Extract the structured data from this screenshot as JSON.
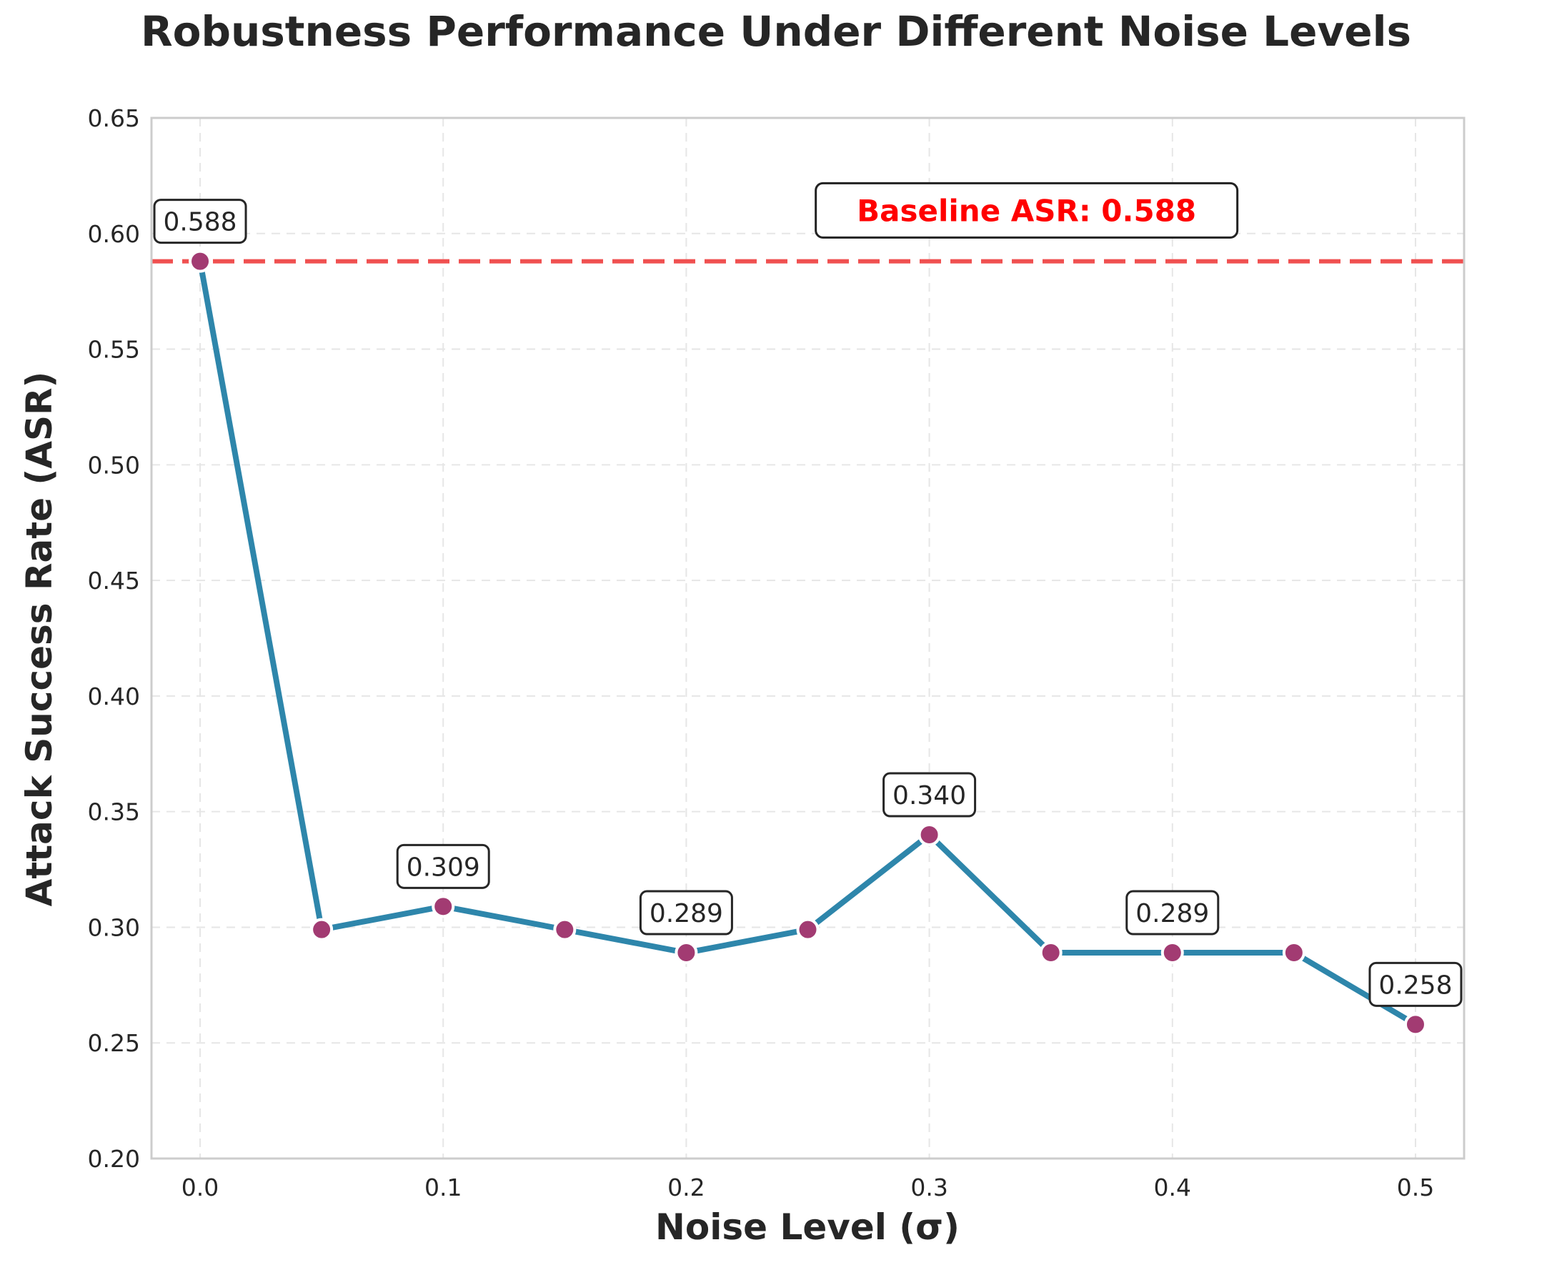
{
  "chart_data": {
    "type": "line",
    "title": "Robustness Performance Under Different Noise Levels",
    "xlabel": "Noise Level (σ)",
    "ylabel": "Attack Success Rate (ASR)",
    "xlim": [
      -0.02,
      0.52
    ],
    "ylim": [
      0.2,
      0.65
    ],
    "xticks": [
      0.0,
      0.1,
      0.2,
      0.3,
      0.4,
      0.5
    ],
    "xtick_labels": [
      "0.0",
      "0.1",
      "0.2",
      "0.3",
      "0.4",
      "0.5"
    ],
    "yticks": [
      0.2,
      0.25,
      0.3,
      0.35,
      0.4,
      0.45,
      0.5,
      0.55,
      0.6,
      0.65
    ],
    "ytick_labels": [
      "0.20",
      "0.25",
      "0.30",
      "0.35",
      "0.40",
      "0.45",
      "0.50",
      "0.55",
      "0.60",
      "0.65"
    ],
    "grid": true,
    "series": [
      {
        "x": [
          0.0,
          0.05,
          0.1,
          0.15,
          0.2,
          0.25,
          0.3,
          0.35,
          0.4,
          0.45,
          0.5
        ],
        "y": [
          0.588,
          0.299,
          0.309,
          0.299,
          0.289,
          0.299,
          0.34,
          0.289,
          0.289,
          0.289,
          0.258
        ],
        "line_color": "#2e86ab",
        "marker_color": "#a23b72"
      }
    ],
    "data_labels": [
      {
        "x": 0.0,
        "y": 0.588,
        "text": "0.588"
      },
      {
        "x": 0.1,
        "y": 0.309,
        "text": "0.309"
      },
      {
        "x": 0.2,
        "y": 0.289,
        "text": "0.289"
      },
      {
        "x": 0.3,
        "y": 0.34,
        "text": "0.340"
      },
      {
        "x": 0.4,
        "y": 0.289,
        "text": "0.289"
      },
      {
        "x": 0.5,
        "y": 0.258,
        "text": "0.258"
      }
    ],
    "baseline": {
      "y": 0.588,
      "label": "Baseline ASR: 0.588",
      "label_x": 0.34,
      "label_y": 0.61,
      "color": "#ff0000",
      "line_color": "#f05050"
    }
  }
}
